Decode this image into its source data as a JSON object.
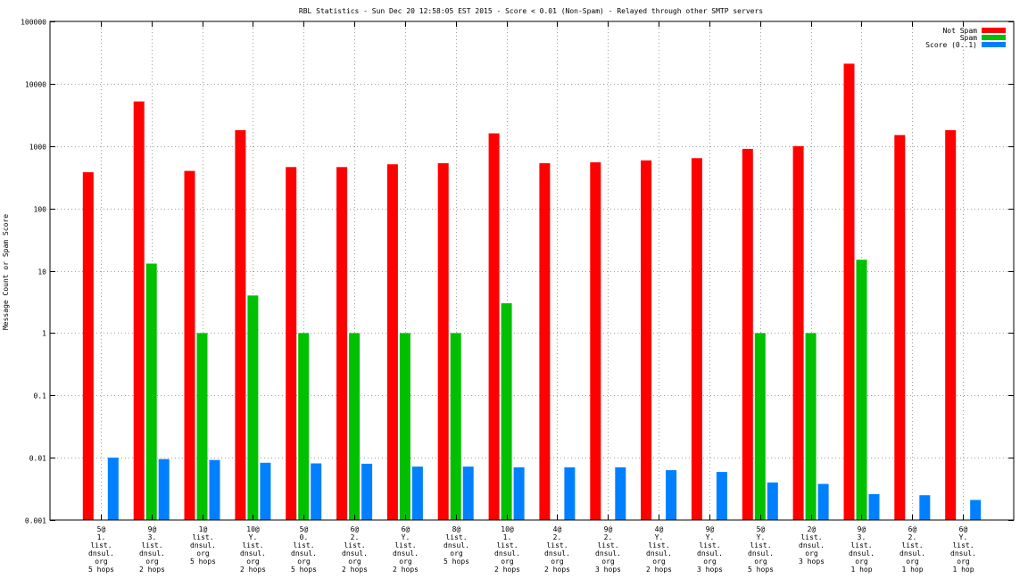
{
  "chart_data": {
    "type": "bar",
    "title": "RBL Statistics - Sun Dec 20 12:58:05 EST 2015 - Score < 0.01 (Non-Spam) - Relayed through other SMTP servers",
    "xlabel": "",
    "ylabel": "Message Count or Spam Score",
    "yscale": "log",
    "ylim": [
      0.001,
      100000
    ],
    "yticks": [
      "0.001",
      "0.01",
      "0.1",
      "1",
      "10",
      "100",
      "1000",
      "10000",
      "100000"
    ],
    "grid": true,
    "legend_position": "top-right",
    "categories": [
      [
        "5@",
        "1.",
        "list.",
        "dnsul.",
        "org",
        "5 hops"
      ],
      [
        "9@",
        "3.",
        "list.",
        "dnsul.",
        "org",
        "2 hops"
      ],
      [
        "1@",
        "list.",
        "dnsul.",
        "org",
        "5 hops"
      ],
      [
        "10@",
        "Y.",
        "list.",
        "dnsul.",
        "org",
        "2 hops"
      ],
      [
        "5@",
        "0.",
        "list.",
        "dnsul.",
        "org",
        "5 hops"
      ],
      [
        "6@",
        "2.",
        "list.",
        "dnsul.",
        "org",
        "2 hops"
      ],
      [
        "6@",
        "Y.",
        "list.",
        "dnsul.",
        "org",
        "2 hops"
      ],
      [
        "8@",
        "list.",
        "dnsul.",
        "org",
        "5 hops"
      ],
      [
        "10@",
        "1.",
        "list.",
        "dnsul.",
        "org",
        "2 hops"
      ],
      [
        "4@",
        "2.",
        "list.",
        "dnsul.",
        "org",
        "2 hops"
      ],
      [
        "9@",
        "2.",
        "list.",
        "dnsul.",
        "org",
        "3 hops"
      ],
      [
        "4@",
        "Y.",
        "list.",
        "dnsul.",
        "org",
        "2 hops"
      ],
      [
        "9@",
        "Y.",
        "list.",
        "dnsul.",
        "org",
        "3 hops"
      ],
      [
        "5@",
        "Y.",
        "list.",
        "dnsul.",
        "org",
        "5 hops"
      ],
      [
        "2@",
        "list.",
        "dnsul.",
        "org",
        "3 hops"
      ],
      [
        "9@",
        "3.",
        "list.",
        "dnsul.",
        "org",
        "1 hop"
      ],
      [
        "6@",
        "2.",
        "list.",
        "dnsul.",
        "org",
        "1 hop"
      ],
      [
        "6@",
        "Y.",
        "list.",
        "dnsul.",
        "org",
        "1 hop"
      ]
    ],
    "series": [
      {
        "name": "Not Spam",
        "color": "#ff0000",
        "values": [
          380,
          5200,
          400,
          1800,
          460,
          460,
          510,
          530,
          1600,
          530,
          550,
          590,
          640,
          900,
          1000,
          21000,
          1500,
          1800
        ]
      },
      {
        "name": "Spam",
        "color": "#00c000",
        "values": [
          null,
          13,
          1,
          4,
          1,
          1,
          1,
          1,
          3,
          null,
          null,
          null,
          null,
          1,
          1,
          15,
          null,
          null
        ]
      },
      {
        "name": "Score (0..1)",
        "color": "#0080ff",
        "values": [
          0.01,
          0.0095,
          0.0092,
          0.0083,
          0.0081,
          0.008,
          0.0072,
          0.0072,
          0.007,
          0.007,
          0.007,
          0.0063,
          0.0059,
          0.004,
          0.0038,
          0.0026,
          0.0025,
          0.0021
        ]
      }
    ]
  }
}
